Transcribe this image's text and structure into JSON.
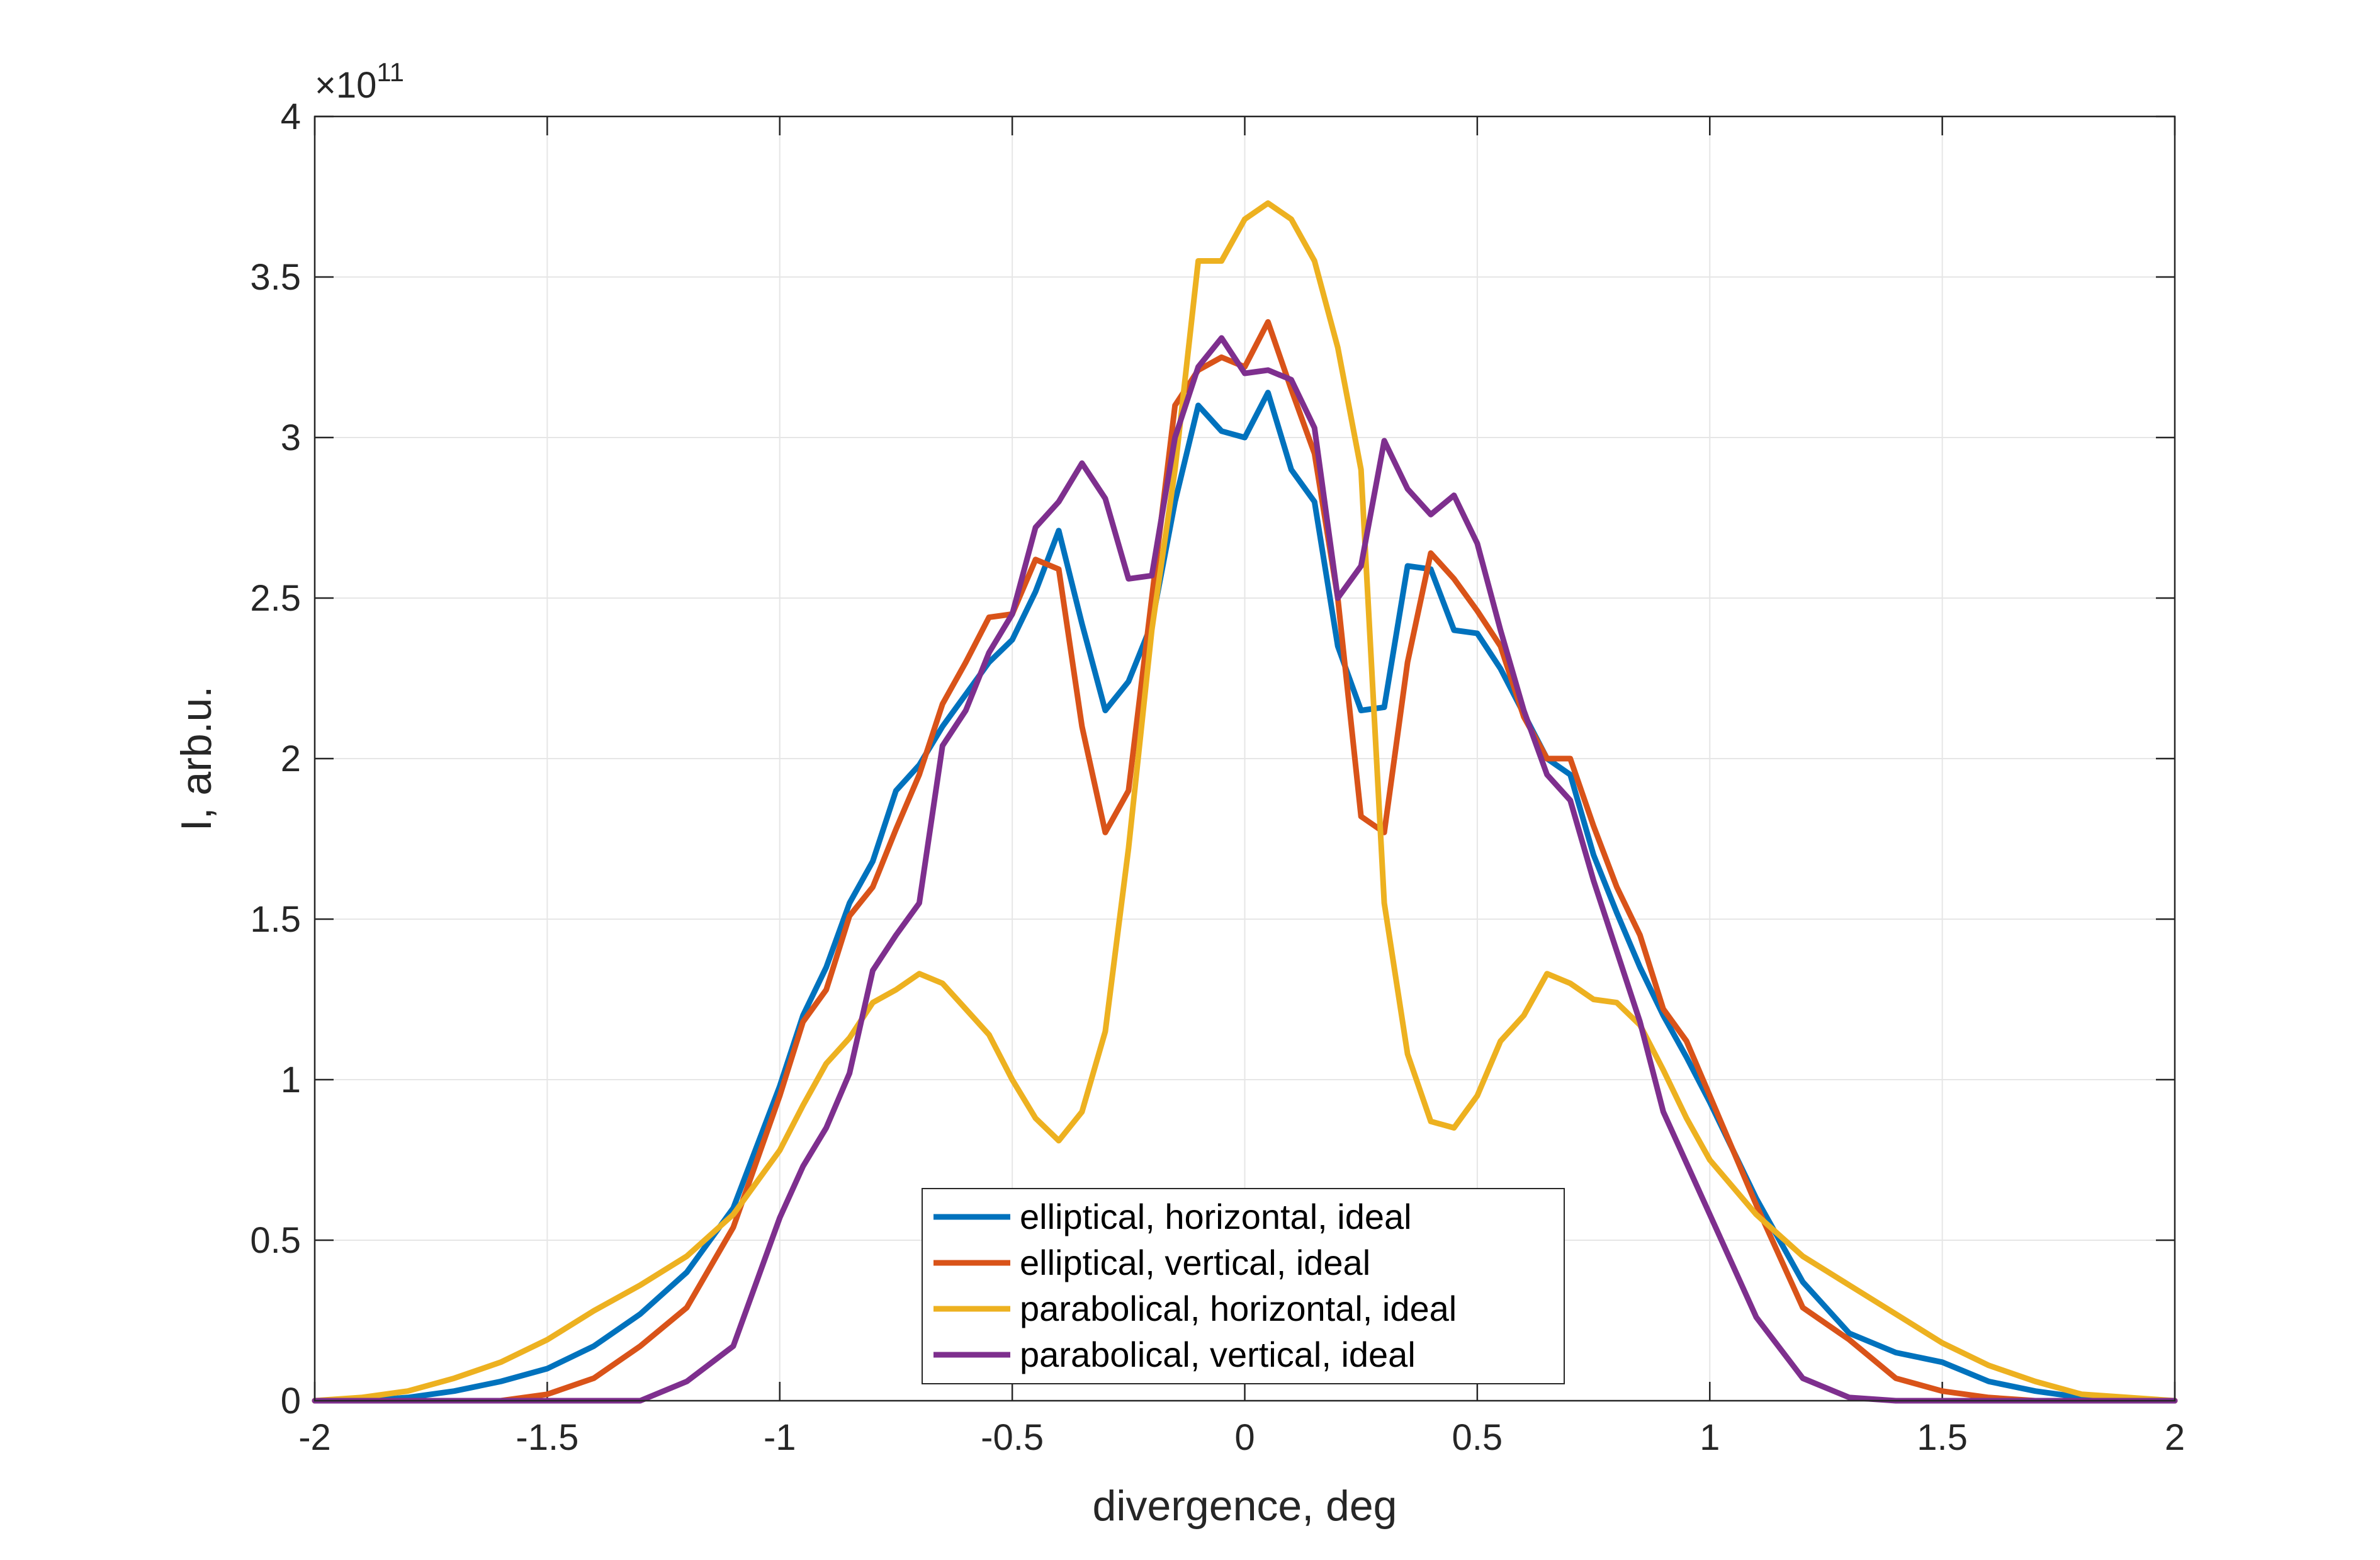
{
  "chart_data": {
    "type": "line",
    "title": "",
    "xlabel": "divergence, deg",
    "ylabel": "I, arb.u.",
    "y_exponent_label": {
      "base": "×10",
      "power": "11"
    },
    "xlim": [
      -2,
      2
    ],
    "ylim": [
      0,
      4
    ],
    "grid": true,
    "legend_position": "bottom-center",
    "x_ticks": [
      "-2",
      "-1.5",
      "-1",
      "-0.5",
      "0",
      "0.5",
      "1",
      "1.5",
      "2"
    ],
    "y_ticks": [
      "0",
      "0.5",
      "1",
      "1.5",
      "2",
      "2.5",
      "3",
      "3.5",
      "4"
    ],
    "x": [
      -2.0,
      -1.9,
      -1.8,
      -1.7,
      -1.6,
      -1.5,
      -1.4,
      -1.3,
      -1.2,
      -1.1,
      -1.0,
      -0.95,
      -0.9,
      -0.85,
      -0.8,
      -0.75,
      -0.7,
      -0.65,
      -0.6,
      -0.55,
      -0.5,
      -0.45,
      -0.4,
      -0.35,
      -0.3,
      -0.25,
      -0.2,
      -0.15,
      -0.1,
      -0.05,
      0.0,
      0.05,
      0.1,
      0.15,
      0.2,
      0.25,
      0.3,
      0.35,
      0.4,
      0.45,
      0.5,
      0.55,
      0.6,
      0.65,
      0.7,
      0.75,
      0.8,
      0.85,
      0.9,
      0.95,
      1.0,
      1.1,
      1.2,
      1.3,
      1.4,
      1.5,
      1.6,
      1.7,
      1.8,
      1.9,
      2.0
    ],
    "series": [
      {
        "name": "elliptical, horizontal, ideal",
        "color": "#0072BD",
        "values": [
          0,
          0,
          0.01,
          0.03,
          0.06,
          0.1,
          0.17,
          0.27,
          0.4,
          0.6,
          0.98,
          1.2,
          1.35,
          1.55,
          1.68,
          1.9,
          1.98,
          2.1,
          2.2,
          2.3,
          2.37,
          2.52,
          2.71,
          2.42,
          2.15,
          2.24,
          2.42,
          2.8,
          3.1,
          3.02,
          3.0,
          3.14,
          2.9,
          2.8,
          2.35,
          2.15,
          2.16,
          2.6,
          2.59,
          2.4,
          2.39,
          2.28,
          2.14,
          2.0,
          1.95,
          1.7,
          1.52,
          1.35,
          1.2,
          1.07,
          0.93,
          0.63,
          0.37,
          0.21,
          0.15,
          0.12,
          0.06,
          0.03,
          0.01,
          0,
          0
        ]
      },
      {
        "name": "elliptical, vertical, ideal",
        "color": "#D95319",
        "values": [
          0,
          0,
          0,
          0,
          0,
          0.02,
          0.07,
          0.17,
          0.29,
          0.54,
          0.95,
          1.18,
          1.28,
          1.51,
          1.6,
          1.78,
          1.95,
          2.17,
          2.3,
          2.44,
          2.45,
          2.62,
          2.59,
          2.1,
          1.77,
          1.9,
          2.5,
          3.1,
          3.21,
          3.25,
          3.22,
          3.36,
          3.15,
          2.95,
          2.5,
          1.82,
          1.77,
          2.3,
          2.64,
          2.56,
          2.46,
          2.35,
          2.13,
          2.0,
          2.0,
          1.79,
          1.6,
          1.45,
          1.22,
          1.12,
          0.95,
          0.61,
          0.29,
          0.19,
          0.07,
          0.03,
          0.01,
          0,
          0,
          0,
          0
        ]
      },
      {
        "name": "parabolical, horizontal, ideal",
        "color": "#EDB120",
        "values": [
          0,
          0.01,
          0.03,
          0.07,
          0.12,
          0.19,
          0.28,
          0.36,
          0.45,
          0.58,
          0.78,
          0.92,
          1.05,
          1.13,
          1.24,
          1.28,
          1.33,
          1.3,
          1.22,
          1.14,
          1.0,
          0.88,
          0.81,
          0.9,
          1.15,
          1.72,
          2.4,
          2.9,
          3.55,
          3.55,
          3.68,
          3.73,
          3.68,
          3.55,
          3.28,
          2.9,
          1.55,
          1.08,
          0.87,
          0.85,
          0.95,
          1.12,
          1.2,
          1.33,
          1.3,
          1.25,
          1.24,
          1.17,
          1.03,
          0.88,
          0.75,
          0.58,
          0.45,
          0.36,
          0.27,
          0.18,
          0.11,
          0.06,
          0.02,
          0.01,
          0
        ]
      },
      {
        "name": "parabolical, vertical, ideal",
        "color": "#7E2F8E",
        "values": [
          0,
          0,
          0,
          0,
          0,
          0,
          0,
          0,
          0.06,
          0.17,
          0.57,
          0.73,
          0.85,
          1.02,
          1.34,
          1.45,
          1.55,
          2.04,
          2.15,
          2.33,
          2.45,
          2.72,
          2.8,
          2.92,
          2.81,
          2.56,
          2.57,
          3.0,
          3.22,
          3.31,
          3.2,
          3.21,
          3.18,
          3.03,
          2.5,
          2.6,
          2.99,
          2.84,
          2.76,
          2.82,
          2.67,
          2.4,
          2.15,
          1.95,
          1.87,
          1.62,
          1.4,
          1.18,
          0.9,
          0.74,
          0.58,
          0.26,
          0.07,
          0.01,
          0,
          0,
          0,
          0,
          0,
          0,
          0
        ]
      }
    ]
  }
}
